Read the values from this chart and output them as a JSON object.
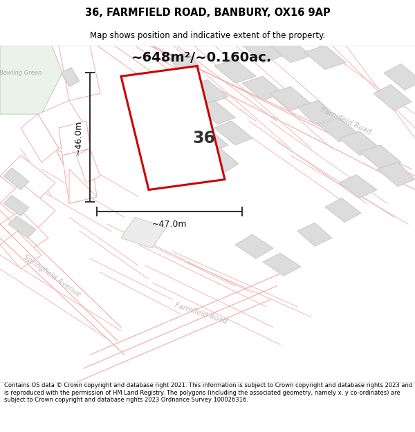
{
  "title": "36, FARMFIELD ROAD, BANBURY, OX16 9AP",
  "subtitle": "Map shows position and indicative extent of the property.",
  "area_label": "~648m²/~0.160ac.",
  "number_label": "36",
  "dim_width": "~47.0m",
  "dim_height": "~46.0m",
  "map_bg": "#f9f9f9",
  "bowling_green_color": "#eaf2ea",
  "bowling_green_label": "Bowling Green",
  "road_label_farmfield_upper": "Farmfield Road",
  "road_label_farmfield_lower": "Farmfield Road",
  "road_label_springfield": "Springfield Avenue",
  "footer_text": "Contains OS data © Crown copyright and database right 2021. This information is subject to Crown copyright and database rights 2023 and is reproduced with the permission of HM Land Registry. The polygons (including the associated geometry, namely x, y co-ordinates) are subject to Crown copyright and database rights 2023 Ordnance Survey 100026316.",
  "main_plot_color": "#cc0000",
  "plot_outline_color": "#f4aaaa",
  "building_fill": "#dcdcdc",
  "building_edge": "#c8c8c8",
  "dim_line_color": "#333333",
  "title_fontsize": 10.5,
  "subtitle_fontsize": 8.5,
  "footer_fontsize": 6.0
}
